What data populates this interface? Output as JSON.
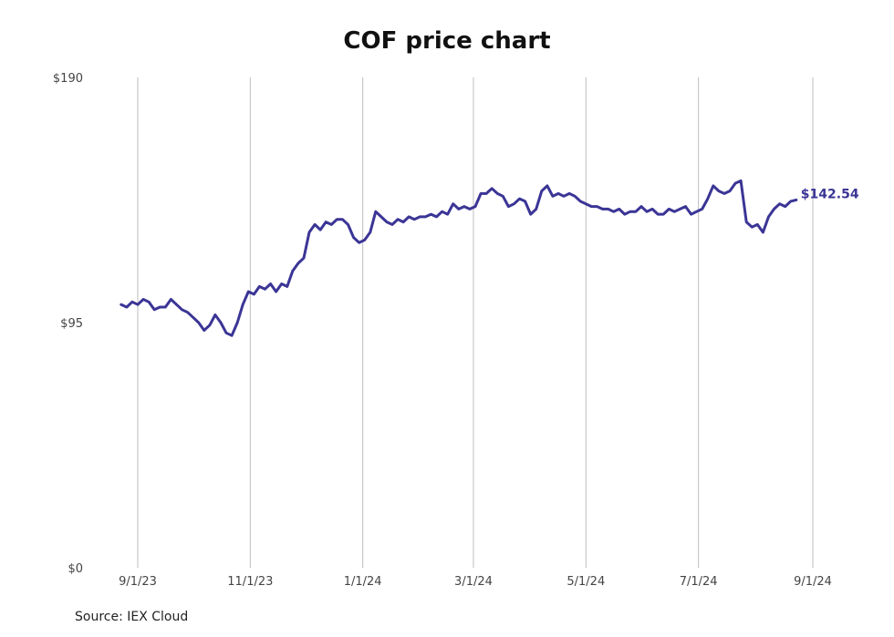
{
  "chart_data": {
    "type": "line",
    "title": "COF price chart",
    "source": "Source: IEX Cloud",
    "ylim": [
      0,
      190
    ],
    "y_ticks": [
      {
        "value": 0,
        "label": "$0"
      },
      {
        "value": 95,
        "label": "$95"
      },
      {
        "value": 190,
        "label": "$190"
      }
    ],
    "x_ticks": [
      "9/1/23",
      "11/1/23",
      "1/1/24",
      "3/1/24",
      "5/1/24",
      "7/1/24",
      "9/1/24"
    ],
    "xlim": [
      "2023-08-26",
      "2024-09-01"
    ],
    "grid": "vertical",
    "line_color": "#3b3596",
    "last_label": "$142.54",
    "series": [
      {
        "x": [
          "2023-08-23",
          "2023-08-26",
          "2023-08-29",
          "2023-09-01",
          "2023-09-04",
          "2023-09-07",
          "2023-09-10",
          "2023-09-13",
          "2023-09-16",
          "2023-09-19",
          "2023-09-22",
          "2023-09-25",
          "2023-09-28",
          "2023-10-01",
          "2023-10-04",
          "2023-10-07",
          "2023-10-10",
          "2023-10-13",
          "2023-10-16",
          "2023-10-19",
          "2023-10-22",
          "2023-10-25",
          "2023-10-28",
          "2023-10-31",
          "2023-11-03",
          "2023-11-06",
          "2023-11-09",
          "2023-11-12",
          "2023-11-15",
          "2023-11-18",
          "2023-11-21",
          "2023-11-24",
          "2023-11-27",
          "2023-11-30",
          "2023-12-03",
          "2023-12-06",
          "2023-12-09",
          "2023-12-12",
          "2023-12-15",
          "2023-12-18",
          "2023-12-21",
          "2023-12-24",
          "2023-12-27",
          "2023-12-30",
          "2024-01-02",
          "2024-01-05",
          "2024-01-08",
          "2024-01-11",
          "2024-01-14",
          "2024-01-17",
          "2024-01-20",
          "2024-01-23",
          "2024-01-26",
          "2024-01-29",
          "2024-02-01",
          "2024-02-04",
          "2024-02-07",
          "2024-02-10",
          "2024-02-13",
          "2024-02-16",
          "2024-02-19",
          "2024-02-22",
          "2024-02-25",
          "2024-02-28",
          "2024-03-02",
          "2024-03-05",
          "2024-03-08",
          "2024-03-11",
          "2024-03-14",
          "2024-03-17",
          "2024-03-20",
          "2024-03-23",
          "2024-03-26",
          "2024-03-29",
          "2024-04-01",
          "2024-04-04",
          "2024-04-07",
          "2024-04-10",
          "2024-04-13",
          "2024-04-16",
          "2024-04-19",
          "2024-04-22",
          "2024-04-25",
          "2024-04-28",
          "2024-05-01",
          "2024-05-04",
          "2024-05-07",
          "2024-05-10",
          "2024-05-13",
          "2024-05-16",
          "2024-05-19",
          "2024-05-22",
          "2024-05-25",
          "2024-05-28",
          "2024-05-31",
          "2024-06-03",
          "2024-06-06",
          "2024-06-09",
          "2024-06-12",
          "2024-06-15",
          "2024-06-18",
          "2024-06-21",
          "2024-06-24",
          "2024-06-27",
          "2024-06-30",
          "2024-07-03",
          "2024-07-06",
          "2024-07-09",
          "2024-07-12",
          "2024-07-15",
          "2024-07-18",
          "2024-07-21",
          "2024-07-24",
          "2024-07-27",
          "2024-07-30",
          "2024-08-02",
          "2024-08-05",
          "2024-08-08",
          "2024-08-11",
          "2024-08-14",
          "2024-08-17",
          "2024-08-20",
          "2024-08-23"
        ],
        "values": [
          102,
          101,
          103,
          102,
          104,
          103,
          100,
          101,
          101,
          104,
          102,
          100,
          99,
          97,
          95,
          92,
          94,
          98,
          95,
          91,
          90,
          95,
          102,
          107,
          106,
          109,
          108,
          110,
          107,
          110,
          109,
          115,
          118,
          120,
          130,
          133,
          131,
          134,
          133,
          135,
          135,
          133,
          128,
          126,
          127,
          130,
          138,
          136,
          134,
          133,
          135,
          134,
          136,
          135,
          136,
          136,
          137,
          136,
          138,
          137,
          141,
          139,
          140,
          139,
          140,
          145,
          145,
          147,
          145,
          144,
          140,
          141,
          143,
          142,
          137,
          139,
          146,
          148,
          144,
          145,
          144,
          145,
          144,
          142,
          141,
          140,
          140,
          139,
          139,
          138,
          139,
          137,
          138,
          138,
          140,
          138,
          139,
          137,
          137,
          139,
          138,
          139,
          140,
          137,
          138,
          139,
          143,
          148,
          146,
          145,
          146,
          149,
          150,
          134,
          132,
          133,
          130,
          136,
          139,
          141,
          140,
          142,
          142.54
        ]
      }
    ]
  }
}
